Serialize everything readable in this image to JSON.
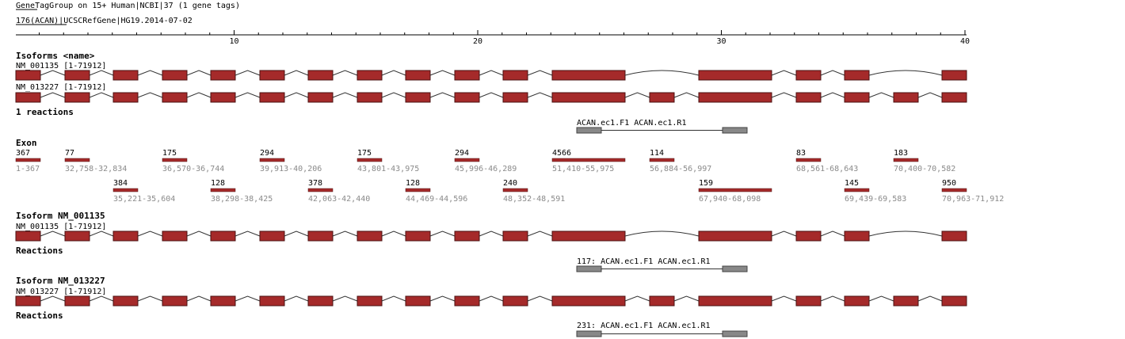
{
  "header": {
    "title": "GeneTagGroup on 15+ Human|NCBI|37 (1 gene tags)",
    "subtitle": "176(ACAN)|UCSCRefGene|HG19.2014-07-02"
  },
  "ruler": {
    "ticks": [
      10,
      20,
      30,
      40
    ]
  },
  "isoforms": {
    "heading": "Isoforms <name>",
    "rows": [
      {
        "label": "NM_001135 [1-71912]"
      },
      {
        "label": "NM_013227 [1-71912]"
      }
    ],
    "reactions_count": "1 reactions",
    "reaction": "ACAN.ec1.F1 ACAN.ec1.R1"
  },
  "exon": {
    "heading": "Exon",
    "exons": [
      {
        "length": 367,
        "range": "1-367"
      },
      {
        "length": 77,
        "range": "32,758-32,834"
      },
      {
        "length": 384,
        "range": "35,221-35,604"
      },
      {
        "length": 175,
        "range": "36,570-36,744"
      },
      {
        "length": 128,
        "range": "38,298-38,425"
      },
      {
        "length": 294,
        "range": "39,913-40,206"
      },
      {
        "length": 378,
        "range": "42,063-42,440"
      },
      {
        "length": 175,
        "range": "43,801-43,975"
      },
      {
        "length": 128,
        "range": "44,469-44,596"
      },
      {
        "length": 294,
        "range": "45,996-46,289"
      },
      {
        "length": 240,
        "range": "48,352-48,591"
      },
      {
        "length": 4566,
        "range": "51,410-55,975"
      },
      {
        "length": 114,
        "range": "56,884-56,997"
      },
      {
        "length": 159,
        "range": "67,940-68,098"
      },
      {
        "length": 83,
        "range": "68,561-68,643"
      },
      {
        "length": 145,
        "range": "69,439-69,583"
      },
      {
        "length": 183,
        "range": "70,400-70,582"
      },
      {
        "length": 950,
        "range": "70,963-71,912"
      }
    ]
  },
  "isoform_details": [
    {
      "heading": "Isoform NM_001135",
      "label": "NM_001135 [1-71912]",
      "reactions_heading": "Reactions",
      "reaction": "117: ACAN.ec1.F1 ACAN.ec1.R1"
    },
    {
      "heading": "Isoform NM_013227",
      "label": "NM_013227 [1-71912]",
      "reactions_heading": "Reactions",
      "reaction": "231: ACAN.ec1.F1 ACAN.ec1.R1"
    }
  ]
}
